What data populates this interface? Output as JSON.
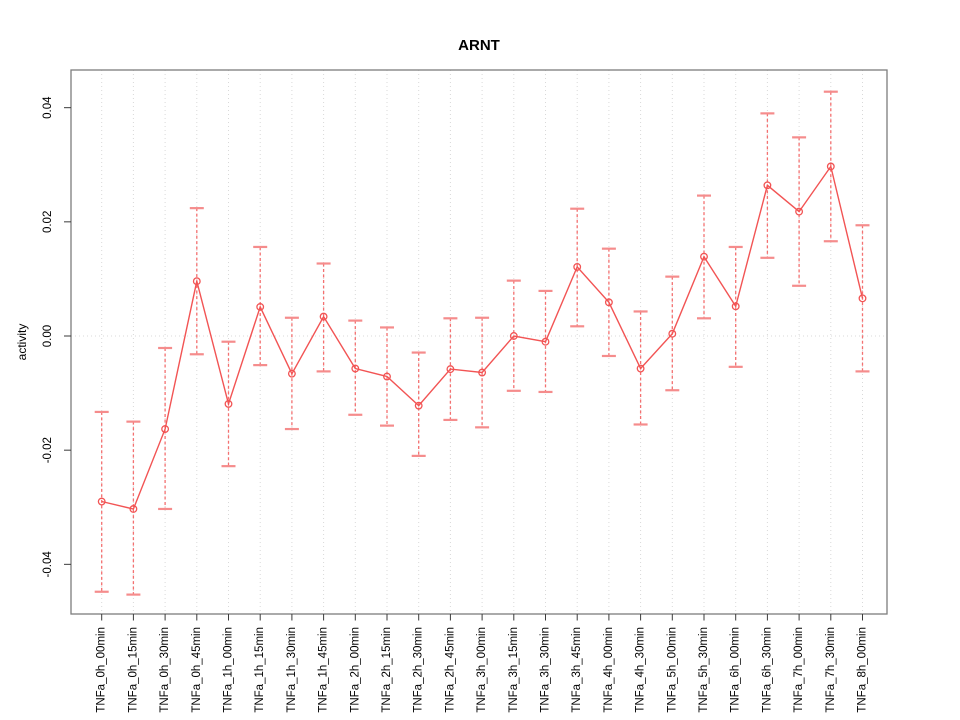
{
  "window": {
    "background": "#ffffff"
  },
  "chart_data": {
    "type": "line",
    "title": "ARNT",
    "xlabel": "",
    "ylabel": "activity",
    "legend": null,
    "grid": {
      "vertical": "dotted line at every category",
      "horizontal": "dotted line at y=0 only"
    },
    "marker": "open-circle",
    "error_bars": true,
    "ylim": [
      -0.0487,
      0.0466
    ],
    "yticks": [
      {
        "value": -0.04,
        "label": "-0.04"
      },
      {
        "value": -0.02,
        "label": "-0.02"
      },
      {
        "value": 0.0,
        "label": "0.00"
      },
      {
        "value": 0.02,
        "label": "0.02"
      },
      {
        "value": 0.04,
        "label": "0.04"
      }
    ],
    "categories": [
      "TNFa_0h_00min",
      "TNFa_0h_15min",
      "TNFa_0h_30min",
      "TNFa_0h_45min",
      "TNFa_1h_00min",
      "TNFa_1h_15min",
      "TNFa_1h_30min",
      "TNFa_1h_45min",
      "TNFa_2h_00min",
      "TNFa_2h_15min",
      "TNFa_2h_30min",
      "TNFa_2h_45min",
      "TNFa_3h_00min",
      "TNFa_3h_15min",
      "TNFa_3h_30min",
      "TNFa_3h_45min",
      "TNFa_4h_00min",
      "TNFa_4h_30min",
      "TNFa_5h_00min",
      "TNFa_5h_30min",
      "TNFa_6h_00min",
      "TNFa_6h_30min",
      "TNFa_7h_00min",
      "TNFa_7h_30min",
      "TNFa_8h_00min"
    ],
    "series": [
      {
        "name": "activity",
        "values": [
          -0.029,
          -0.0303,
          -0.0163,
          0.0096,
          -0.0119,
          0.0051,
          -0.0066,
          0.0034,
          -0.0057,
          -0.0071,
          -0.0122,
          -0.0058,
          -0.0064,
          0.0,
          -0.001,
          0.0121,
          0.0059,
          -0.0057,
          0.0004,
          0.0139,
          0.0052,
          0.0264,
          0.0218,
          0.0297,
          0.0066
        ],
        "err_low": [
          -0.0448,
          -0.0453,
          -0.0303,
          -0.0032,
          -0.0228,
          -0.0051,
          -0.0163,
          -0.0062,
          -0.0138,
          -0.0157,
          -0.021,
          -0.0147,
          -0.016,
          -0.0096,
          -0.0098,
          0.0017,
          -0.0035,
          -0.0155,
          -0.0095,
          0.0031,
          -0.0054,
          0.0137,
          0.0088,
          0.0166,
          -0.0062
        ],
        "err_high": [
          -0.0133,
          -0.015,
          -0.0021,
          0.0224,
          -0.001,
          0.0156,
          0.0032,
          0.0127,
          0.0027,
          0.0015,
          -0.0029,
          0.0031,
          0.0032,
          0.0097,
          0.0079,
          0.0223,
          0.0153,
          0.0043,
          0.0104,
          0.0246,
          0.0156,
          0.039,
          0.0348,
          0.0428,
          0.0194
        ]
      }
    ],
    "colors": {
      "series": "#f25454",
      "error_bar": "#f47070",
      "error_cap": "#f58c8c",
      "grid": "#d9d9d9",
      "axis_box": "#7d7d7d",
      "tick": "#3a3a3a",
      "text": "#000000",
      "background": "#ffffff"
    }
  }
}
